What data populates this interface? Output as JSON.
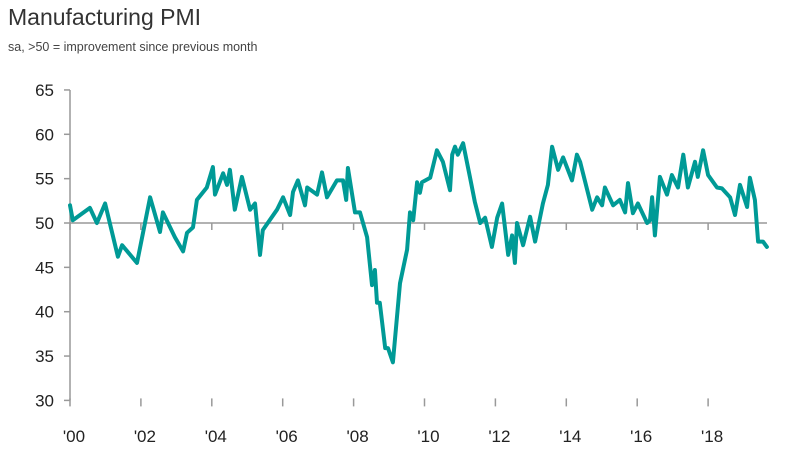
{
  "chart_data": {
    "type": "line",
    "title": "Manufacturing PMI",
    "subtitle": "sa, >50 = improvement since previous month",
    "xlabel": "",
    "ylabel": "",
    "ylim": [
      30,
      65
    ],
    "xlim": [
      2000,
      2019.7
    ],
    "yticks": [
      30,
      35,
      40,
      45,
      50,
      55,
      60,
      65
    ],
    "xticks": [
      2000,
      2002,
      2004,
      2006,
      2008,
      2010,
      2012,
      2014,
      2016,
      2018
    ],
    "xtick_labels": [
      "'00",
      "'02",
      "'04",
      "'06",
      "'08",
      "'10",
      "'12",
      "'14",
      "'16",
      "'18"
    ],
    "reference_line": 50,
    "grid": false,
    "color": "#009A96",
    "series": [
      {
        "x": [
          2000.0,
          2000.08,
          2000.56,
          2000.76,
          2000.99,
          2001.35,
          2001.47,
          2001.89,
          2002.26,
          2002.54,
          2002.62,
          2002.96,
          2003.19,
          2003.3,
          2003.47,
          2003.58,
          2003.86,
          2004.03,
          2004.09,
          2004.32,
          2004.43,
          2004.51,
          2004.65,
          2004.85,
          2005.08,
          2005.22,
          2005.36,
          2005.44,
          2005.84,
          2006.01,
          2006.21,
          2006.29,
          2006.43,
          2006.63,
          2006.69,
          2006.97,
          2007.11,
          2007.25,
          2007.53,
          2007.7,
          2007.79,
          2007.84,
          2008.04,
          2008.18,
          2008.38,
          2008.52,
          2008.6,
          2008.66,
          2008.74,
          2008.89,
          2008.97,
          2009.11,
          2009.31,
          2009.51,
          2009.59,
          2009.68,
          2009.79,
          2009.87,
          2009.93,
          2010.16,
          2010.35,
          2010.52,
          2010.72,
          2010.78,
          2010.86,
          2010.94,
          2011.09,
          2011.28,
          2011.42,
          2011.57,
          2011.71,
          2011.9,
          2012.05,
          2012.19,
          2012.36,
          2012.47,
          2012.55,
          2012.61,
          2012.78,
          2012.98,
          2013.12,
          2013.34,
          2013.48,
          2013.6,
          2013.77,
          2013.91,
          2014.16,
          2014.3,
          2014.39,
          2014.73,
          2014.87,
          2015.01,
          2015.09,
          2015.32,
          2015.51,
          2015.66,
          2015.74,
          2015.88,
          2016.02,
          2016.28,
          2016.36,
          2016.42,
          2016.5,
          2016.64,
          2016.84,
          2016.98,
          2017.15,
          2017.3,
          2017.43,
          2017.63,
          2017.71,
          2017.86,
          2018.0,
          2018.25,
          2018.39,
          2018.62,
          2018.76,
          2018.9,
          2019.1,
          2019.18,
          2019.32,
          2019.41,
          2019.55,
          2019.66
        ],
        "y": [
          52.0,
          50.3,
          51.7,
          50.0,
          52.2,
          46.2,
          47.5,
          45.5,
          52.9,
          49.0,
          51.2,
          48.4,
          46.8,
          48.9,
          49.5,
          52.6,
          54.0,
          56.3,
          53.2,
          55.6,
          54.3,
          56.0,
          51.5,
          55.2,
          51.5,
          52.2,
          46.4,
          49.2,
          51.5,
          52.9,
          50.9,
          53.5,
          54.8,
          52.0,
          54.0,
          53.2,
          55.7,
          52.9,
          54.8,
          54.8,
          52.6,
          56.2,
          51.2,
          51.2,
          48.4,
          43.0,
          44.7,
          41.0,
          41.0,
          35.9,
          35.9,
          34.3,
          43.2,
          47.0,
          51.2,
          50.3,
          54.6,
          53.4,
          54.6,
          55.1,
          58.2,
          56.9,
          53.7,
          57.7,
          58.6,
          57.7,
          59.0,
          55.2,
          52.4,
          50.0,
          50.6,
          47.3,
          50.6,
          52.2,
          46.4,
          48.6,
          45.5,
          50.0,
          47.5,
          50.7,
          47.9,
          52.2,
          54.3,
          58.6,
          56.0,
          57.4,
          54.8,
          57.7,
          56.9,
          51.5,
          52.9,
          52.0,
          54.0,
          52.0,
          52.6,
          51.2,
          54.5,
          51.1,
          52.2,
          50.0,
          50.3,
          52.9,
          48.6,
          55.2,
          53.2,
          55.4,
          54.0,
          57.7,
          54.0,
          56.9,
          55.2,
          58.2,
          55.4,
          54.0,
          53.9,
          52.9,
          50.9,
          54.3,
          51.8,
          55.1,
          52.6,
          47.9,
          47.9,
          47.3
        ]
      }
    ]
  }
}
